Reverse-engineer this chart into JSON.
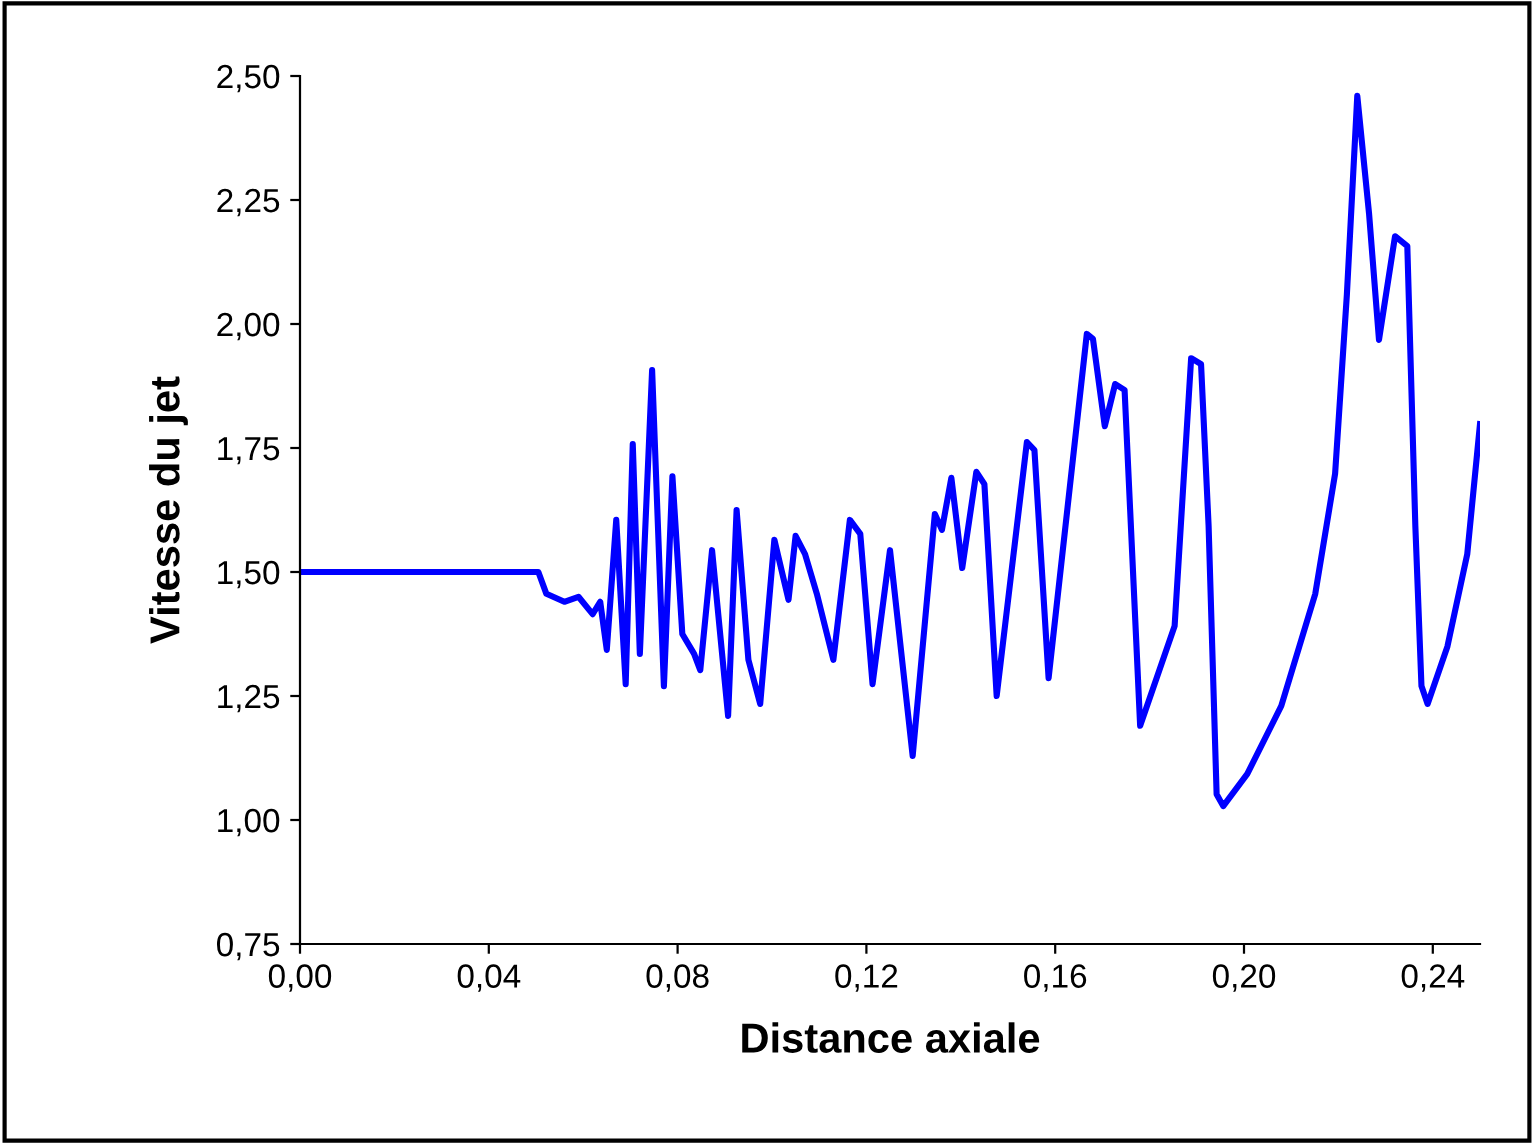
{
  "chart_data": {
    "type": "line",
    "xlabel": "Distance axiale",
    "ylabel": "Vitesse du jet",
    "xlim": [
      0,
      0.25
    ],
    "ylim": [
      0.75,
      2.5
    ],
    "xticks": [
      {
        "value": 0,
        "label": "0,00"
      },
      {
        "value": 0.04,
        "label": "0,04"
      },
      {
        "value": 0.08,
        "label": "0,08"
      },
      {
        "value": 0.12,
        "label": "0,12"
      },
      {
        "value": 0.16,
        "label": "0,16"
      },
      {
        "value": 0.2,
        "label": "0,20"
      },
      {
        "value": 0.24,
        "label": "0,24"
      }
    ],
    "yticks": [
      {
        "value": 0.75,
        "label": "0,75"
      },
      {
        "value": 1.0,
        "label": "1,00"
      },
      {
        "value": 1.25,
        "label": "1,25"
      },
      {
        "value": 1.5,
        "label": "1,50"
      },
      {
        "value": 1.75,
        "label": "1,75"
      },
      {
        "value": 2.0,
        "label": "2,00"
      },
      {
        "value": 2.25,
        "label": "2,25"
      },
      {
        "value": 2.5,
        "label": "2,50"
      }
    ],
    "grid": false,
    "legend": false,
    "marker": "none",
    "line_style": "solid",
    "series": [
      {
        "color": "#0000ff",
        "x": [
          0,
          0.0505,
          0.0522,
          0.056,
          0.059,
          0.062,
          0.0636,
          0.065,
          0.067,
          0.069,
          0.0705,
          0.072,
          0.0746,
          0.0771,
          0.0789,
          0.081,
          0.0835,
          0.0848,
          0.0873,
          0.0907,
          0.0925,
          0.095,
          0.0975,
          0.1005,
          0.1035,
          0.105,
          0.107,
          0.1095,
          0.113,
          0.1165,
          0.1187,
          0.1213,
          0.125,
          0.1298,
          0.1345,
          0.136,
          0.138,
          0.1403,
          0.1433,
          0.145,
          0.1476,
          0.154,
          0.1556,
          0.1586,
          0.1667,
          0.168,
          0.1705,
          0.1727,
          0.1747,
          0.178,
          0.1853,
          0.1888,
          0.1909,
          0.1925,
          0.1942,
          0.1956,
          0.2007,
          0.2079,
          0.2151,
          0.2193,
          0.2218,
          0.224,
          0.2265,
          0.2286,
          0.232,
          0.2346,
          0.2363,
          0.2376,
          0.2389,
          0.2431,
          0.2473,
          0.25
        ],
        "values": [
          1.5,
          1.5,
          1.456,
          1.44,
          1.45,
          1.415,
          1.44,
          1.343,
          1.605,
          1.274,
          1.758,
          1.335,
          1.907,
          1.27,
          1.693,
          1.375,
          1.335,
          1.302,
          1.544,
          1.21,
          1.625,
          1.323,
          1.234,
          1.565,
          1.444,
          1.573,
          1.536,
          1.456,
          1.323,
          1.605,
          1.577,
          1.274,
          1.544,
          1.129,
          1.617,
          1.585,
          1.69,
          1.508,
          1.702,
          1.677,
          1.25,
          1.762,
          1.746,
          1.286,
          1.98,
          1.97,
          1.794,
          1.879,
          1.867,
          1.19,
          1.391,
          1.931,
          1.919,
          1.593,
          1.052,
          1.028,
          1.093,
          1.23,
          1.456,
          1.698,
          2.06,
          2.46,
          2.222,
          1.968,
          2.177,
          2.157,
          1.593,
          1.27,
          1.234,
          1.35,
          1.536,
          1.798
        ]
      }
    ]
  }
}
